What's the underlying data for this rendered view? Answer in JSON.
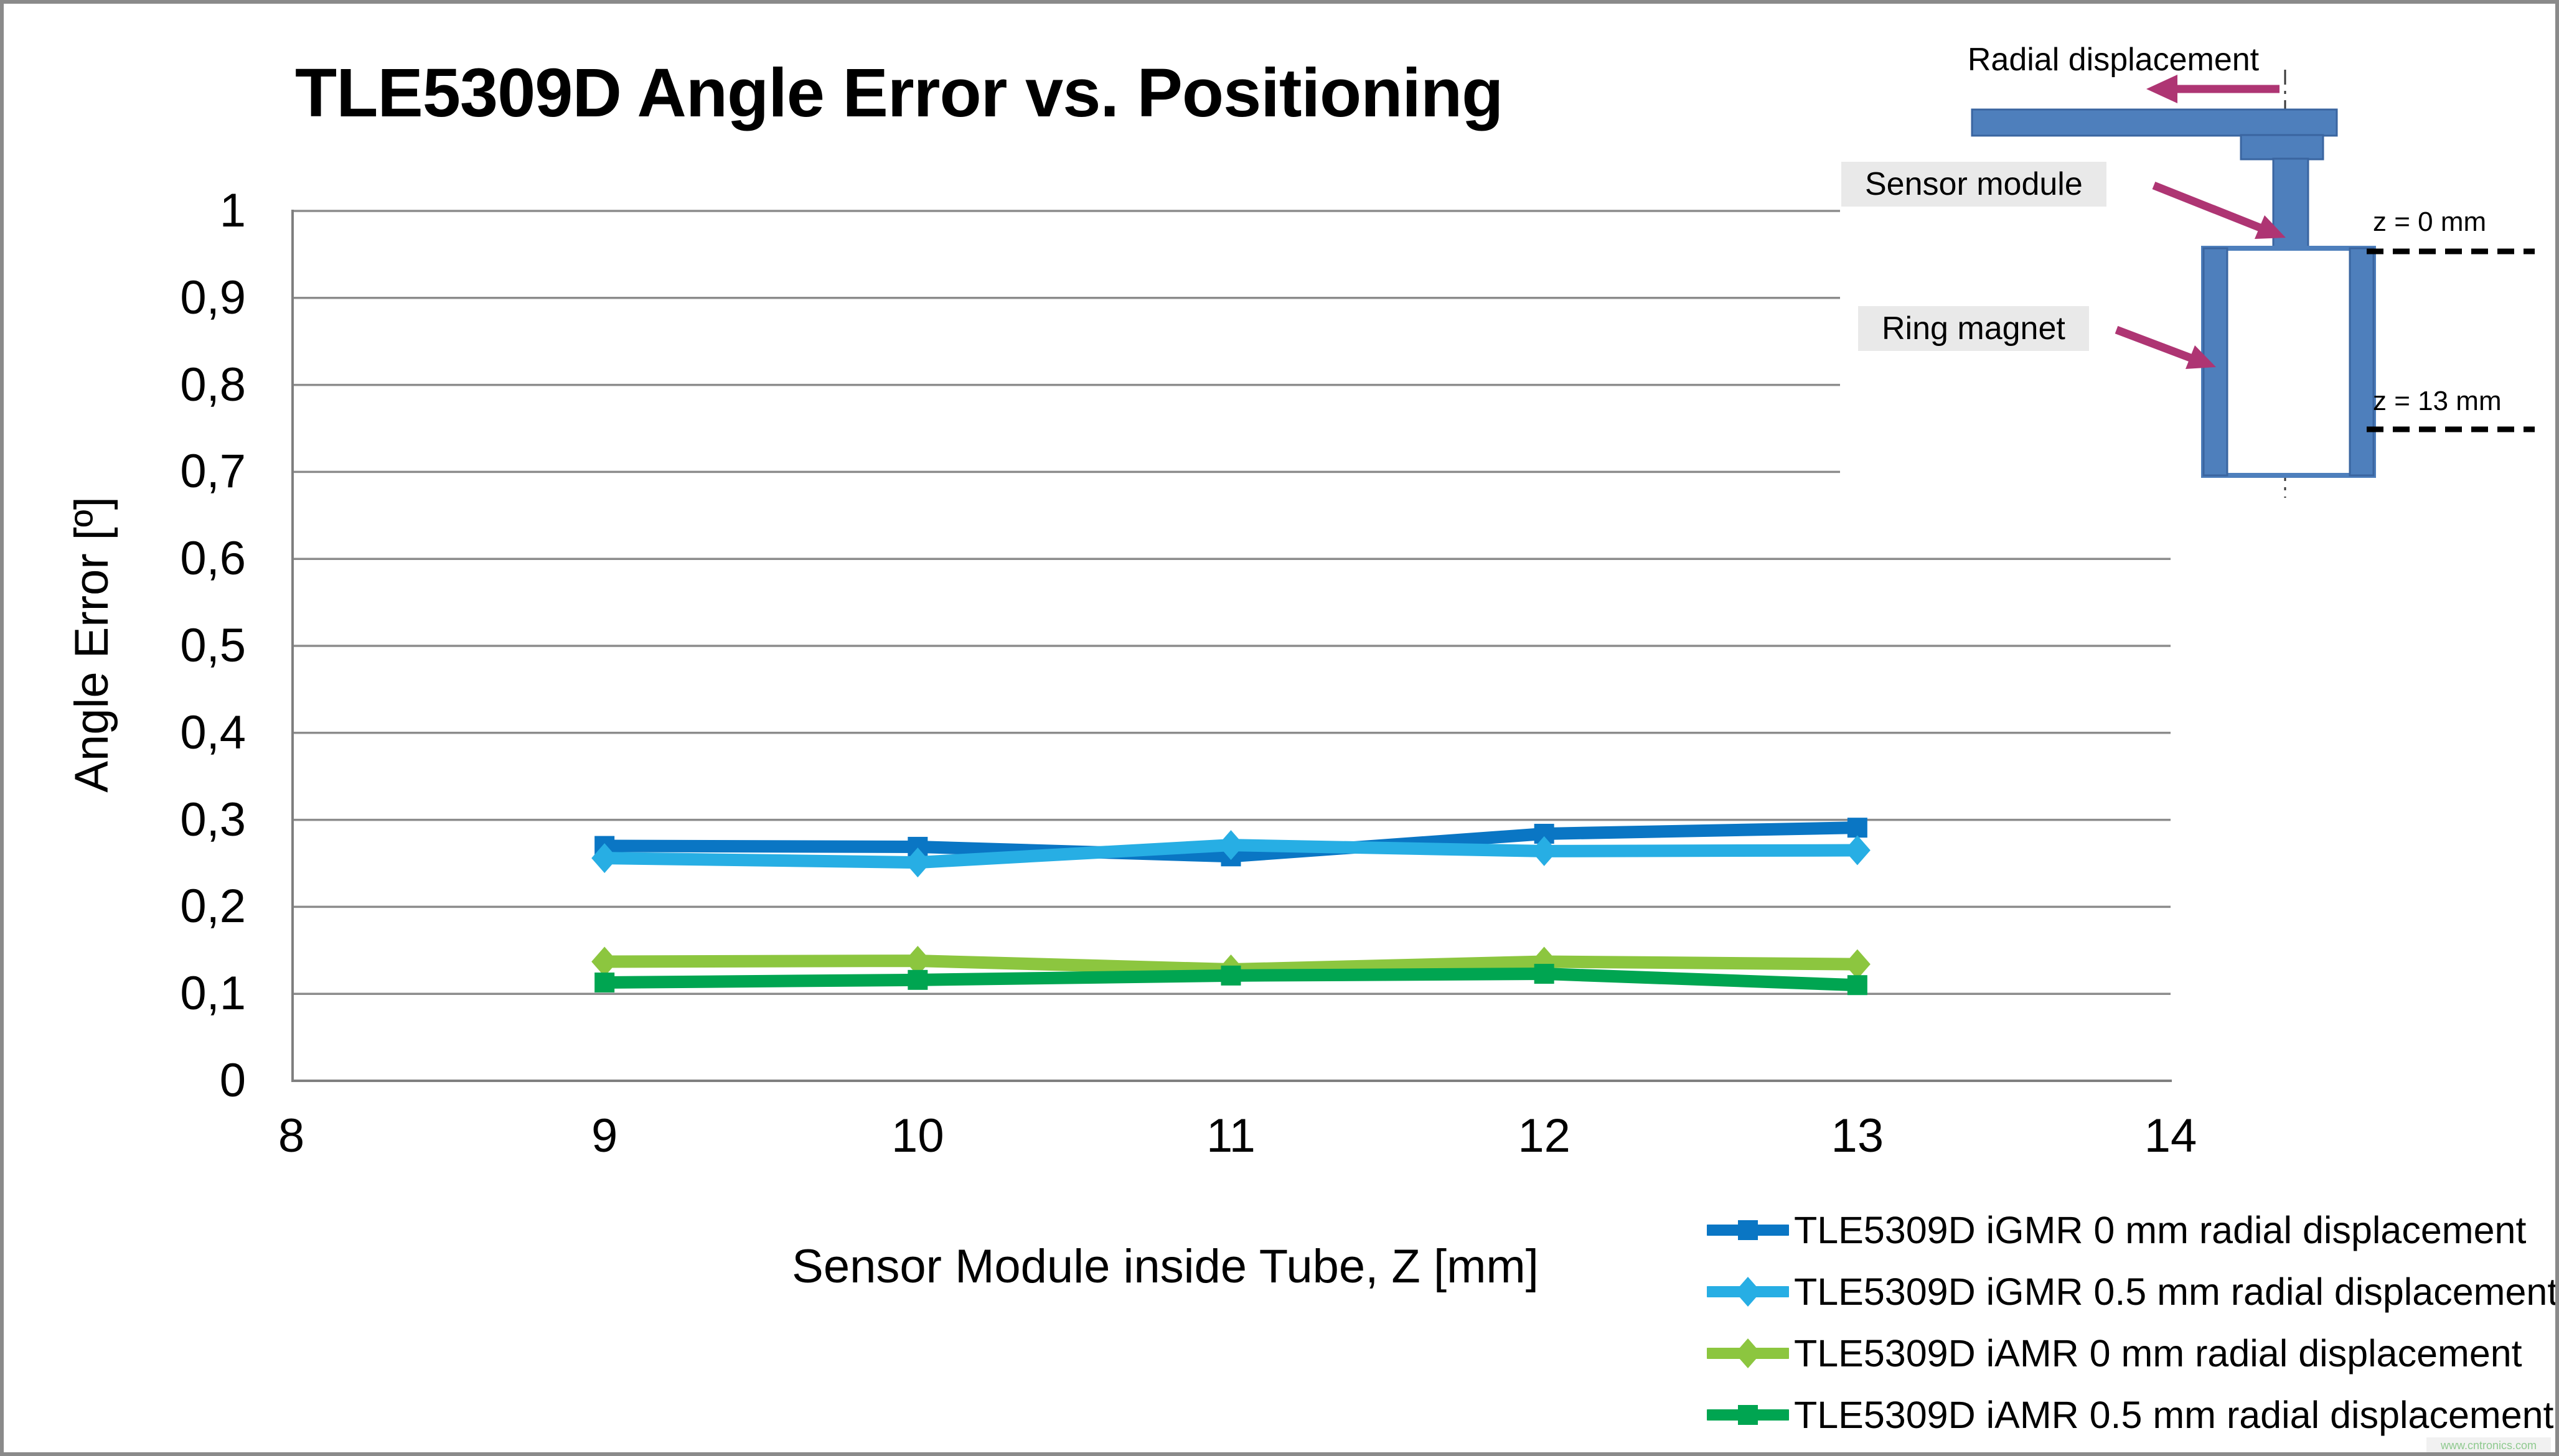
{
  "page_title": "TLE5309D Angle Error vs. Positioning",
  "colors": {
    "axis_gray": "#7f7f7f",
    "grid_gray": "#8c8c8c",
    "frame_gray": "#8a8a8a",
    "diagram_blue_fill": "#4e7fbc",
    "diagram_blue_stroke": "#3a65a0",
    "callout_magenta": "#ae3573",
    "label_bg_gray": "#e9e9e9",
    "watermark_green": "#8fca8f",
    "series_igmr_0mm_blue": "#0a76c4",
    "series_igmr_05mm_lightblue": "#27aee4",
    "series_iamr_0mm_lightgreen": "#8cc63f",
    "series_iamr_05mm_green": "#00a551"
  },
  "chart_data": {
    "type": "line",
    "title": "TLE5309D Angle Error vs. Positioning",
    "xlabel": "Sensor Module inside Tube, Z [mm]",
    "ylabel": "Angle Error [º]",
    "xlim": [
      8,
      14
    ],
    "ylim": [
      0,
      1
    ],
    "x_ticks": [
      "8",
      "9",
      "10",
      "11",
      "12",
      "13",
      "14"
    ],
    "x_tick_values": [
      8,
      9,
      10,
      11,
      12,
      13,
      14
    ],
    "y_tick_labels": [
      "0",
      "0,1",
      "0,2",
      "0,3",
      "0,4",
      "0,5",
      "0,6",
      "0,7",
      "0,8",
      "0,9",
      "1"
    ],
    "y_tick_values": [
      0,
      0.1,
      0.2,
      0.3,
      0.4,
      0.5,
      0.6,
      0.7,
      0.8,
      0.9,
      1
    ],
    "grid": "horizontal-only",
    "legend_position": "bottom-right",
    "x": [
      9,
      10,
      11,
      12,
      13
    ],
    "series": [
      {
        "name": "TLE5309D iGMR 0 mm radial displacement",
        "color": "#0a76c4",
        "marker": "square",
        "values": [
          0.27,
          0.269,
          0.258,
          0.284,
          0.291
        ]
      },
      {
        "name": "TLE5309D iGMR 0.5 mm radial displacement",
        "color": "#27aee4",
        "marker": "diamond",
        "values": [
          0.256,
          0.251,
          0.271,
          0.264,
          0.265
        ]
      },
      {
        "name": "TLE5309D iAMR 0 mm radial displacement",
        "color": "#8cc63f",
        "marker": "diamond",
        "values": [
          0.137,
          0.138,
          0.128,
          0.137,
          0.134
        ]
      },
      {
        "name": "TLE5309D iAMR 0.5 mm radial displacement",
        "color": "#00a551",
        "marker": "square",
        "values": [
          0.113,
          0.116,
          0.121,
          0.123,
          0.11
        ]
      }
    ]
  },
  "diagram": {
    "radial_label": "Radial displacement",
    "sensor_label": "Sensor module",
    "magnet_label": "Ring magnet",
    "z_top_label": "z = 0 mm",
    "z_bottom_label": "z = 13 mm"
  },
  "watermark": {
    "text": "www.cntronics.com"
  }
}
